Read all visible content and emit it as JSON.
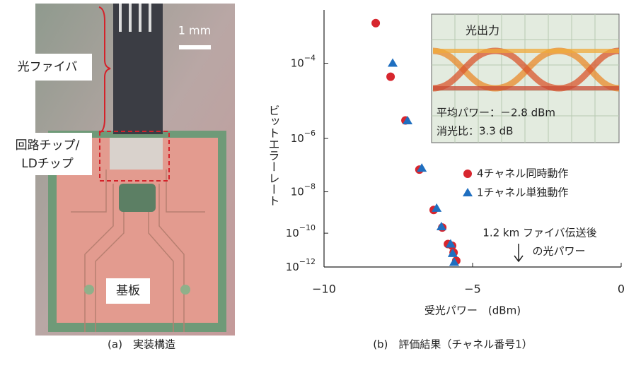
{
  "photo": {
    "scale_label": "1 mm",
    "fiber_label": "光ファイバ",
    "chip_label": [
      "回路チップ/",
      "LDチップ"
    ],
    "board_label": "基板",
    "caption": "(a)　実装構造"
  },
  "chart_data": {
    "type": "scatter",
    "caption": "(b)　評価結果（チャネル番号1）",
    "x_label": "受光パワー　(dBm)",
    "y_label": "ビットエラーレート",
    "yscale": "log-log",
    "xlim": [
      -10,
      0
    ],
    "xticks": [
      {
        "value": -10,
        "label": "−10"
      },
      {
        "value": -5,
        "label": "−5"
      },
      {
        "value": 0,
        "label": "0"
      }
    ],
    "ylim": [
      1e-12,
      0.001
    ],
    "yticks": [
      {
        "value": 0.0001,
        "label": "10−4"
      },
      {
        "value": 1e-06,
        "label": "10−6"
      },
      {
        "value": 1e-08,
        "label": "10−8"
      },
      {
        "value": 1e-10,
        "label": "10−10"
      },
      {
        "value": 1e-12,
        "label": "10−12"
      }
    ],
    "series": [
      {
        "name": "4チャネル同時動作",
        "color": "#d7262e",
        "marker": "circle",
        "x": [
          -8.26,
          -7.76,
          -7.26,
          -6.79,
          -6.31,
          -6.02,
          -5.83,
          -5.69,
          -5.64,
          -5.55
        ],
        "values": [
          0.0006,
          5e-05,
          3.6e-06,
          8e-08,
          1.5e-09,
          2e-10,
          2.5e-11,
          2e-11,
          8e-12,
          2.5e-12
        ]
      },
      {
        "name": "1チャネル単独動作",
        "color": "#1f6fc0",
        "marker": "triangle",
        "x": [
          -7.69,
          -7.19,
          -6.71,
          -6.21,
          -6.05,
          -5.74,
          -5.67,
          -5.62
        ],
        "values": [
          0.0001,
          3.5e-06,
          9e-08,
          1.8e-09,
          2.2e-10,
          2.5e-11,
          7e-12,
          2e-12
        ]
      }
    ],
    "inset": {
      "title": "光出力",
      "lines": [
        "平均パワー：－2.8 dBm",
        "消光比：3.3 dB"
      ]
    },
    "annotation": [
      "1.2 km ファイバ伝送後",
      "の光パワー"
    ]
  }
}
